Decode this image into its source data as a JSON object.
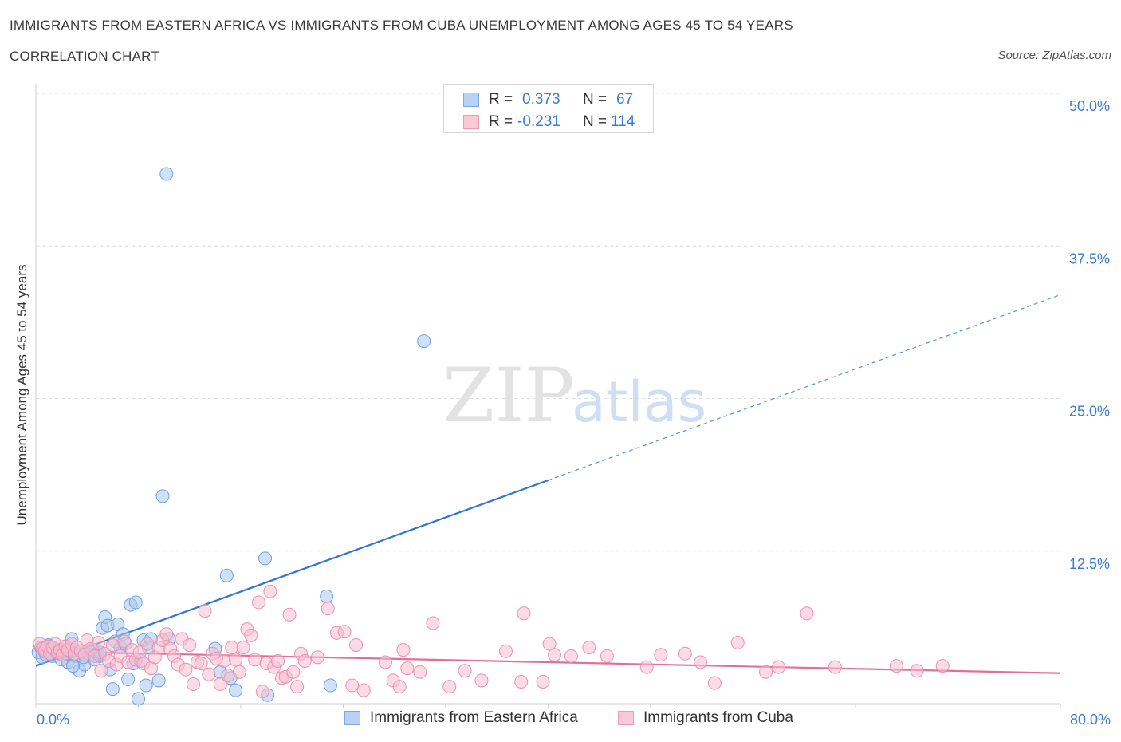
{
  "header": {
    "title": "IMMIGRANTS FROM EASTERN AFRICA VS IMMIGRANTS FROM CUBA UNEMPLOYMENT AMONG AGES 45 TO 54 YEARS",
    "subtitle": "CORRELATION CHART",
    "source": "Source: ZipAtlas.com"
  },
  "watermark": {
    "zip": "ZIP",
    "atlas": "atlas"
  },
  "legend": {
    "rows": [
      {
        "r_label": "R =",
        "r_value": "0.373",
        "n_label": "N =",
        "n_value": "67"
      },
      {
        "r_label": "R =",
        "r_value": "-0.231",
        "n_label": "N =",
        "n_value": "114"
      }
    ]
  },
  "colors": {
    "blue_fill": "#a9c8f0",
    "blue_stroke": "#6f9fe0",
    "blue_line": "#2f74d0",
    "pink_fill": "#f7bfd0",
    "pink_stroke": "#ec8fb0",
    "pink_line": "#e0709a",
    "axis_text": "#3a7bd5",
    "grid": "#dcdcdc"
  },
  "chart_data": {
    "type": "scatter",
    "title": "IMMIGRANTS FROM EASTERN AFRICA VS IMMIGRANTS FROM CUBA UNEMPLOYMENT AMONG AGES 45 TO 54 YEARS",
    "xlabel": "",
    "ylabel": "Unemployment Among Ages 45 to 54 years",
    "xlim": [
      0,
      80
    ],
    "ylim": [
      0,
      50
    ],
    "x_tick_labels": [
      "0.0%",
      "80.0%"
    ],
    "y_ticks": [
      12.5,
      25.0,
      37.5,
      50.0
    ],
    "y_tick_labels": [
      "12.5%",
      "25.0%",
      "37.5%",
      "50.0%"
    ],
    "grid": true,
    "series": [
      {
        "name": "Immigrants from Eastern Africa",
        "R": 0.373,
        "N": 67,
        "trend": {
          "x0": 0,
          "y0": 3.1,
          "x1": 40,
          "y1": 18.3,
          "dashed_to_x": 80,
          "dashed_to_y": 33.5
        },
        "points": [
          [
            0.2,
            4.2
          ],
          [
            0.4,
            4.6
          ],
          [
            0.5,
            3.8
          ],
          [
            0.6,
            4.4
          ],
          [
            0.8,
            4.0
          ],
          [
            1.0,
            4.8
          ],
          [
            1.1,
            4.1
          ],
          [
            1.3,
            3.9
          ],
          [
            1.4,
            4.5
          ],
          [
            1.6,
            4.2
          ],
          [
            1.8,
            4.3
          ],
          [
            2.0,
            3.6
          ],
          [
            2.1,
            4.0
          ],
          [
            2.3,
            4.7
          ],
          [
            2.5,
            3.4
          ],
          [
            2.6,
            4.1
          ],
          [
            2.8,
            5.3
          ],
          [
            3.0,
            4.4
          ],
          [
            3.2,
            3.9
          ],
          [
            3.4,
            2.7
          ],
          [
            3.6,
            4.1
          ],
          [
            3.8,
            3.2
          ],
          [
            4.0,
            4.3
          ],
          [
            4.2,
            4.0
          ],
          [
            4.4,
            4.4
          ],
          [
            4.6,
            3.6
          ],
          [
            4.8,
            4.1
          ],
          [
            5.0,
            3.9
          ],
          [
            5.2,
            6.2
          ],
          [
            5.4,
            7.1
          ],
          [
            5.6,
            6.4
          ],
          [
            5.8,
            2.8
          ],
          [
            6.0,
            1.2
          ],
          [
            6.2,
            5.1
          ],
          [
            6.4,
            6.5
          ],
          [
            6.6,
            4.6
          ],
          [
            6.8,
            5.7
          ],
          [
            7.0,
            4.9
          ],
          [
            7.2,
            2.0
          ],
          [
            7.4,
            8.1
          ],
          [
            7.6,
            3.3
          ],
          [
            7.8,
            8.3
          ],
          [
            8.0,
            0.4
          ],
          [
            8.2,
            3.5
          ],
          [
            8.4,
            5.2
          ],
          [
            8.6,
            1.5
          ],
          [
            8.8,
            4.6
          ],
          [
            9.0,
            5.3
          ],
          [
            9.6,
            1.9
          ],
          [
            9.9,
            17.0
          ],
          [
            10.2,
            43.4
          ],
          [
            10.4,
            5.3
          ],
          [
            14.0,
            4.5
          ],
          [
            14.4,
            2.6
          ],
          [
            14.9,
            10.5
          ],
          [
            15.2,
            2.1
          ],
          [
            15.6,
            1.1
          ],
          [
            17.9,
            11.9
          ],
          [
            18.1,
            0.7
          ],
          [
            22.7,
            8.8
          ],
          [
            23.0,
            1.5
          ],
          [
            30.3,
            29.7
          ],
          [
            1.1,
            4.7
          ],
          [
            2.4,
            4.1
          ],
          [
            3.7,
            3.8
          ],
          [
            5.0,
            4.2
          ],
          [
            2.9,
            3.1
          ]
        ]
      },
      {
        "name": "Immigrants from Cuba",
        "R": -0.231,
        "N": 114,
        "trend": {
          "x0": 0,
          "y0": 4.3,
          "x1": 80,
          "y1": 2.5
        },
        "points": [
          [
            0.3,
            4.9
          ],
          [
            0.5,
            4.5
          ],
          [
            0.7,
            4.3
          ],
          [
            0.9,
            4.7
          ],
          [
            1.1,
            4.1
          ],
          [
            1.3,
            4.6
          ],
          [
            1.5,
            4.9
          ],
          [
            1.7,
            4.2
          ],
          [
            1.9,
            4.4
          ],
          [
            2.1,
            4.0
          ],
          [
            2.3,
            4.7
          ],
          [
            2.5,
            4.4
          ],
          [
            2.8,
            4.9
          ],
          [
            3.0,
            4.1
          ],
          [
            3.2,
            4.6
          ],
          [
            3.5,
            4.3
          ],
          [
            3.8,
            4.0
          ],
          [
            4.0,
            5.2
          ],
          [
            4.3,
            4.5
          ],
          [
            4.6,
            3.9
          ],
          [
            4.9,
            5.0
          ],
          [
            5.1,
            2.7
          ],
          [
            5.4,
            4.1
          ],
          [
            5.7,
            3.5
          ],
          [
            6.0,
            4.8
          ],
          [
            6.3,
            3.2
          ],
          [
            6.6,
            3.9
          ],
          [
            6.9,
            5.1
          ],
          [
            7.2,
            3.4
          ],
          [
            7.5,
            4.4
          ],
          [
            7.8,
            3.6
          ],
          [
            8.1,
            4.2
          ],
          [
            8.4,
            3.3
          ],
          [
            8.7,
            4.9
          ],
          [
            9.0,
            2.9
          ],
          [
            9.3,
            3.8
          ],
          [
            9.6,
            4.6
          ],
          [
            9.9,
            5.2
          ],
          [
            10.2,
            5.7
          ],
          [
            10.5,
            4.5
          ],
          [
            10.8,
            3.9
          ],
          [
            11.1,
            3.2
          ],
          [
            11.4,
            5.3
          ],
          [
            11.7,
            2.8
          ],
          [
            12.0,
            4.8
          ],
          [
            12.3,
            1.6
          ],
          [
            12.6,
            3.4
          ],
          [
            12.9,
            3.3
          ],
          [
            13.2,
            7.6
          ],
          [
            13.5,
            2.4
          ],
          [
            13.8,
            4.1
          ],
          [
            14.1,
            3.7
          ],
          [
            14.4,
            1.6
          ],
          [
            14.7,
            3.5
          ],
          [
            15.0,
            2.3
          ],
          [
            15.3,
            4.6
          ],
          [
            15.6,
            3.6
          ],
          [
            15.9,
            2.6
          ],
          [
            16.2,
            4.6
          ],
          [
            16.5,
            6.1
          ],
          [
            16.8,
            5.6
          ],
          [
            17.1,
            3.6
          ],
          [
            17.4,
            8.3
          ],
          [
            17.7,
            1.0
          ],
          [
            18.0,
            3.3
          ],
          [
            18.3,
            9.2
          ],
          [
            18.6,
            3.0
          ],
          [
            18.9,
            3.5
          ],
          [
            19.2,
            2.1
          ],
          [
            19.5,
            2.2
          ],
          [
            19.8,
            7.3
          ],
          [
            20.1,
            2.6
          ],
          [
            20.4,
            1.4
          ],
          [
            20.7,
            4.1
          ],
          [
            21.0,
            3.5
          ],
          [
            22.0,
            3.8
          ],
          [
            22.8,
            7.8
          ],
          [
            23.5,
            5.8
          ],
          [
            24.1,
            5.9
          ],
          [
            24.7,
            1.5
          ],
          [
            25.0,
            4.8
          ],
          [
            25.6,
            1.1
          ],
          [
            27.3,
            3.4
          ],
          [
            27.9,
            1.9
          ],
          [
            28.4,
            1.4
          ],
          [
            28.7,
            4.4
          ],
          [
            29.0,
            2.9
          ],
          [
            30.0,
            2.6
          ],
          [
            31.0,
            6.6
          ],
          [
            32.3,
            1.4
          ],
          [
            33.5,
            2.7
          ],
          [
            34.8,
            1.9
          ],
          [
            36.7,
            4.3
          ],
          [
            37.9,
            1.8
          ],
          [
            38.1,
            7.4
          ],
          [
            39.6,
            1.8
          ],
          [
            40.1,
            4.9
          ],
          [
            40.5,
            4.0
          ],
          [
            41.8,
            3.9
          ],
          [
            43.2,
            4.6
          ],
          [
            44.6,
            3.9
          ],
          [
            47.7,
            3.0
          ],
          [
            48.8,
            4.0
          ],
          [
            50.7,
            4.1
          ],
          [
            51.9,
            3.4
          ],
          [
            53.0,
            1.7
          ],
          [
            54.8,
            5.0
          ],
          [
            57.0,
            2.6
          ],
          [
            58.0,
            3.0
          ],
          [
            60.2,
            7.4
          ],
          [
            62.4,
            3.0
          ],
          [
            67.2,
            3.1
          ],
          [
            68.8,
            2.7
          ],
          [
            70.8,
            3.1
          ]
        ]
      }
    ]
  }
}
